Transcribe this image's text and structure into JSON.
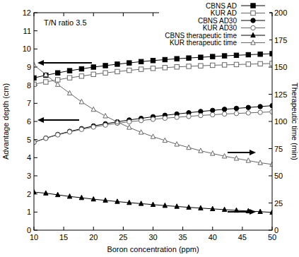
{
  "chart_data": {
    "type": "line",
    "annotations": [
      "T/N ratio 3.5"
    ],
    "xlabel": "Boron concentration (ppm)",
    "ylabel": "Advantage depth (cm)",
    "y2label": "Therapeutic time (min)",
    "x": [
      10,
      12,
      14,
      16,
      18,
      20,
      22,
      24,
      26,
      28,
      30,
      32,
      34,
      36,
      38,
      40,
      42,
      44,
      46,
      48,
      50
    ],
    "xlim": [
      10,
      50
    ],
    "xticks": [
      10,
      15,
      20,
      25,
      30,
      35,
      40,
      45,
      50
    ],
    "ylim": [
      0,
      12
    ],
    "yticks": [
      0,
      1,
      2,
      3,
      4,
      5,
      6,
      7,
      8,
      9,
      10,
      11,
      12
    ],
    "y2lim": [
      0,
      200
    ],
    "y2ticks": [
      0,
      25,
      50,
      75,
      100,
      125,
      150,
      175,
      200
    ],
    "legend": "upper right",
    "series": [
      {
        "name": "CBNS AD",
        "color": "#000000",
        "marker": "square-filled",
        "line_style": "solid",
        "values": [
          8.4,
          8.55,
          8.68,
          8.8,
          8.9,
          9.0,
          9.08,
          9.16,
          9.23,
          9.3,
          9.36,
          9.41,
          9.46,
          9.5,
          9.54,
          9.58,
          9.62,
          9.65,
          9.68,
          9.71,
          9.74
        ]
      },
      {
        "name": "KUR AD",
        "color": "#666666",
        "marker": "square-open",
        "line_style": "solid",
        "values": [
          8.05,
          8.18,
          8.3,
          8.41,
          8.5,
          8.6,
          8.68,
          8.75,
          8.82,
          8.88,
          8.93,
          8.97,
          9.01,
          9.04,
          9.07,
          9.1,
          9.12,
          9.14,
          9.16,
          9.18,
          9.2
        ]
      },
      {
        "name": "CBNS AD30",
        "color": "#000000",
        "marker": "circle-filled",
        "line_style": "solid",
        "values": [
          4.85,
          5.08,
          5.28,
          5.45,
          5.6,
          5.75,
          5.87,
          5.98,
          6.08,
          6.17,
          6.26,
          6.34,
          6.41,
          6.48,
          6.55,
          6.61,
          6.67,
          6.72,
          6.77,
          6.82,
          6.87
        ]
      },
      {
        "name": "KUR AD30",
        "color": "#666666",
        "marker": "circle-open",
        "line_style": "solid",
        "values": [
          4.85,
          5.07,
          5.26,
          5.42,
          5.56,
          5.69,
          5.8,
          5.9,
          5.98,
          6.05,
          6.12,
          6.18,
          6.23,
          6.28,
          6.33,
          6.37,
          6.41,
          6.44,
          6.47,
          6.5,
          6.53
        ]
      },
      {
        "name": "CBNS therapeutic time",
        "color": "#000000",
        "marker": "triangle-filled",
        "line_style": "solid",
        "axis": "y2",
        "values": [
          35,
          34,
          32.5,
          31,
          29.8,
          28.5,
          27.4,
          26.3,
          25.3,
          24.4,
          23.5,
          22.6,
          21.8,
          21,
          20.3,
          19.6,
          18.9,
          18.2,
          17.6,
          17,
          16.4
        ]
      },
      {
        "name": "KUR therapeutic time",
        "color": "#666666",
        "marker": "triangle-open",
        "line_style": "solid",
        "axis": "y2",
        "values": [
          152,
          143,
          134,
          126,
          118,
          111,
          105,
          99.5,
          94.5,
          90,
          86,
          82.5,
          79,
          76,
          73,
          70.5,
          68,
          66,
          64,
          62,
          60.5
        ]
      }
    ]
  }
}
